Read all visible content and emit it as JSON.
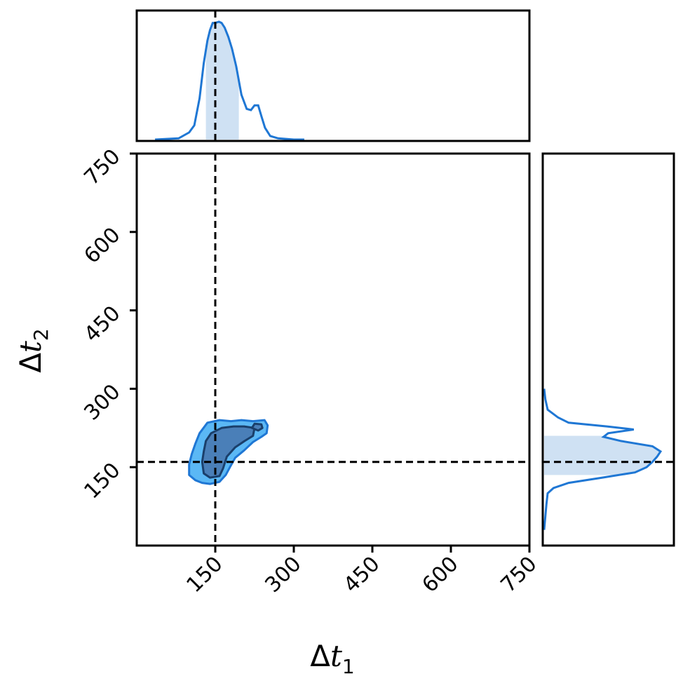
{
  "chart_data": {
    "type": "corner",
    "title": "",
    "xlabel": {
      "base": "Δ",
      "var": "t",
      "sub": "1"
    },
    "ylabel": {
      "base": "Δ",
      "var": "t",
      "sub": "2"
    },
    "xlim": [
      0,
      750
    ],
    "ylim": [
      0,
      750
    ],
    "xticks": [
      "150",
      "300",
      "450",
      "600",
      "750"
    ],
    "yticks": [
      "150",
      "300",
      "450",
      "600",
      "750"
    ],
    "truth": {
      "dt1": 150,
      "dt2": 160
    },
    "colors": {
      "line": "#1f77d4",
      "outer_fill": "#5bb8f5",
      "inner_fill": "#4a7fb8",
      "inner_edge": "#1a3f6b",
      "band": "#cfe1f3"
    },
    "marginal_dt1": {
      "x": [
        35,
        80,
        100,
        110,
        120,
        128,
        135,
        140,
        145,
        150,
        157,
        162,
        168,
        175,
        182,
        190,
        200,
        210,
        218,
        225,
        232,
        238,
        245,
        255,
        270,
        300,
        320
      ],
      "density": [
        0.0,
        0.01,
        0.06,
        0.12,
        0.35,
        0.65,
        0.84,
        0.93,
        0.99,
        0.99,
        1.0,
        0.99,
        0.95,
        0.87,
        0.77,
        0.62,
        0.38,
        0.26,
        0.25,
        0.29,
        0.29,
        0.2,
        0.1,
        0.03,
        0.01,
        0.0,
        0.0
      ],
      "band": [
        132,
        195
      ]
    },
    "marginal_dt2": {
      "y": [
        30,
        80,
        100,
        110,
        120,
        130,
        140,
        150,
        160,
        170,
        180,
        190,
        200,
        208,
        215,
        222,
        228,
        235,
        245,
        260,
        280,
        300
      ],
      "density": [
        0.0,
        0.02,
        0.03,
        0.08,
        0.21,
        0.5,
        0.78,
        0.88,
        0.93,
        0.97,
        1.0,
        0.93,
        0.66,
        0.51,
        0.55,
        0.77,
        0.54,
        0.21,
        0.12,
        0.03,
        0.01,
        0.0
      ],
      "band": [
        135,
        210
      ]
    },
    "contour_outer": [
      [
        112,
        125
      ],
      [
        125,
        120
      ],
      [
        140,
        118
      ],
      [
        158,
        122
      ],
      [
        170,
        135
      ],
      [
        178,
        150
      ],
      [
        188,
        168
      ],
      [
        205,
        182
      ],
      [
        222,
        198
      ],
      [
        238,
        208
      ],
      [
        248,
        215
      ],
      [
        250,
        230
      ],
      [
        244,
        240
      ],
      [
        222,
        238
      ],
      [
        200,
        240
      ],
      [
        180,
        238
      ],
      [
        158,
        240
      ],
      [
        135,
        235
      ],
      [
        120,
        215
      ],
      [
        112,
        195
      ],
      [
        105,
        175
      ],
      [
        100,
        155
      ],
      [
        100,
        135
      ]
    ],
    "contour_inner": [
      [
        128,
        138
      ],
      [
        140,
        130
      ],
      [
        158,
        133
      ],
      [
        165,
        148
      ],
      [
        172,
        170
      ],
      [
        188,
        188
      ],
      [
        206,
        200
      ],
      [
        222,
        210
      ],
      [
        225,
        225
      ],
      [
        205,
        228
      ],
      [
        185,
        228
      ],
      [
        162,
        225
      ],
      [
        142,
        215
      ],
      [
        132,
        200
      ],
      [
        128,
        180
      ],
      [
        125,
        160
      ]
    ],
    "contour_island": [
      [
        220,
        225
      ],
      [
        232,
        220
      ],
      [
        240,
        225
      ],
      [
        238,
        232
      ],
      [
        225,
        233
      ]
    ]
  }
}
